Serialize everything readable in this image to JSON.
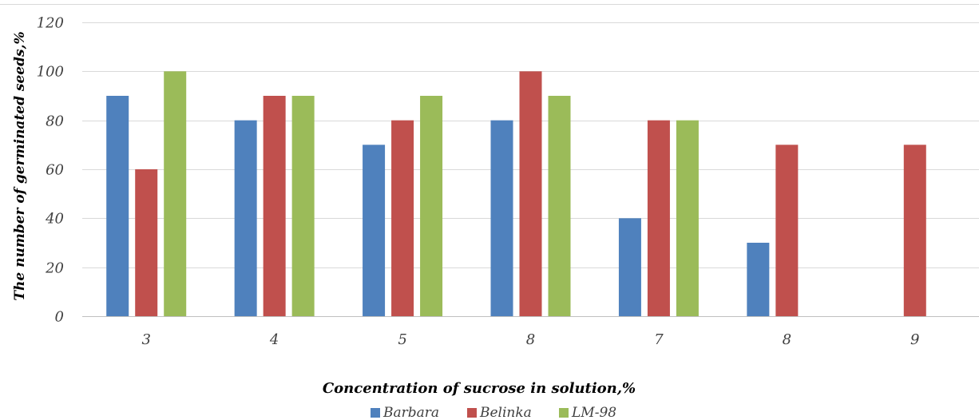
{
  "chart_data": {
    "type": "bar",
    "categories": [
      "3",
      "4",
      "5",
      "8",
      "7",
      "8",
      "9"
    ],
    "series": [
      {
        "name": "Barbara",
        "color": "#4F81BD",
        "values": [
          90,
          80,
          70,
          80,
          40,
          30,
          null
        ]
      },
      {
        "name": "Belinka",
        "color": "#C0504D",
        "values": [
          60,
          90,
          80,
          100,
          80,
          70,
          70
        ]
      },
      {
        "name": "LM-98",
        "color": "#9BBB59",
        "values": [
          100,
          90,
          90,
          90,
          80,
          null,
          null
        ]
      }
    ],
    "xlabel": "Concentration of sucrose in solution,%",
    "ylabel": "The number of germinated seeds,%",
    "ylim": [
      0,
      120
    ],
    "yticks": [
      "0",
      "20",
      "40",
      "60",
      "80",
      "100",
      "120"
    ],
    "grid": true,
    "legend": "bottom"
  }
}
